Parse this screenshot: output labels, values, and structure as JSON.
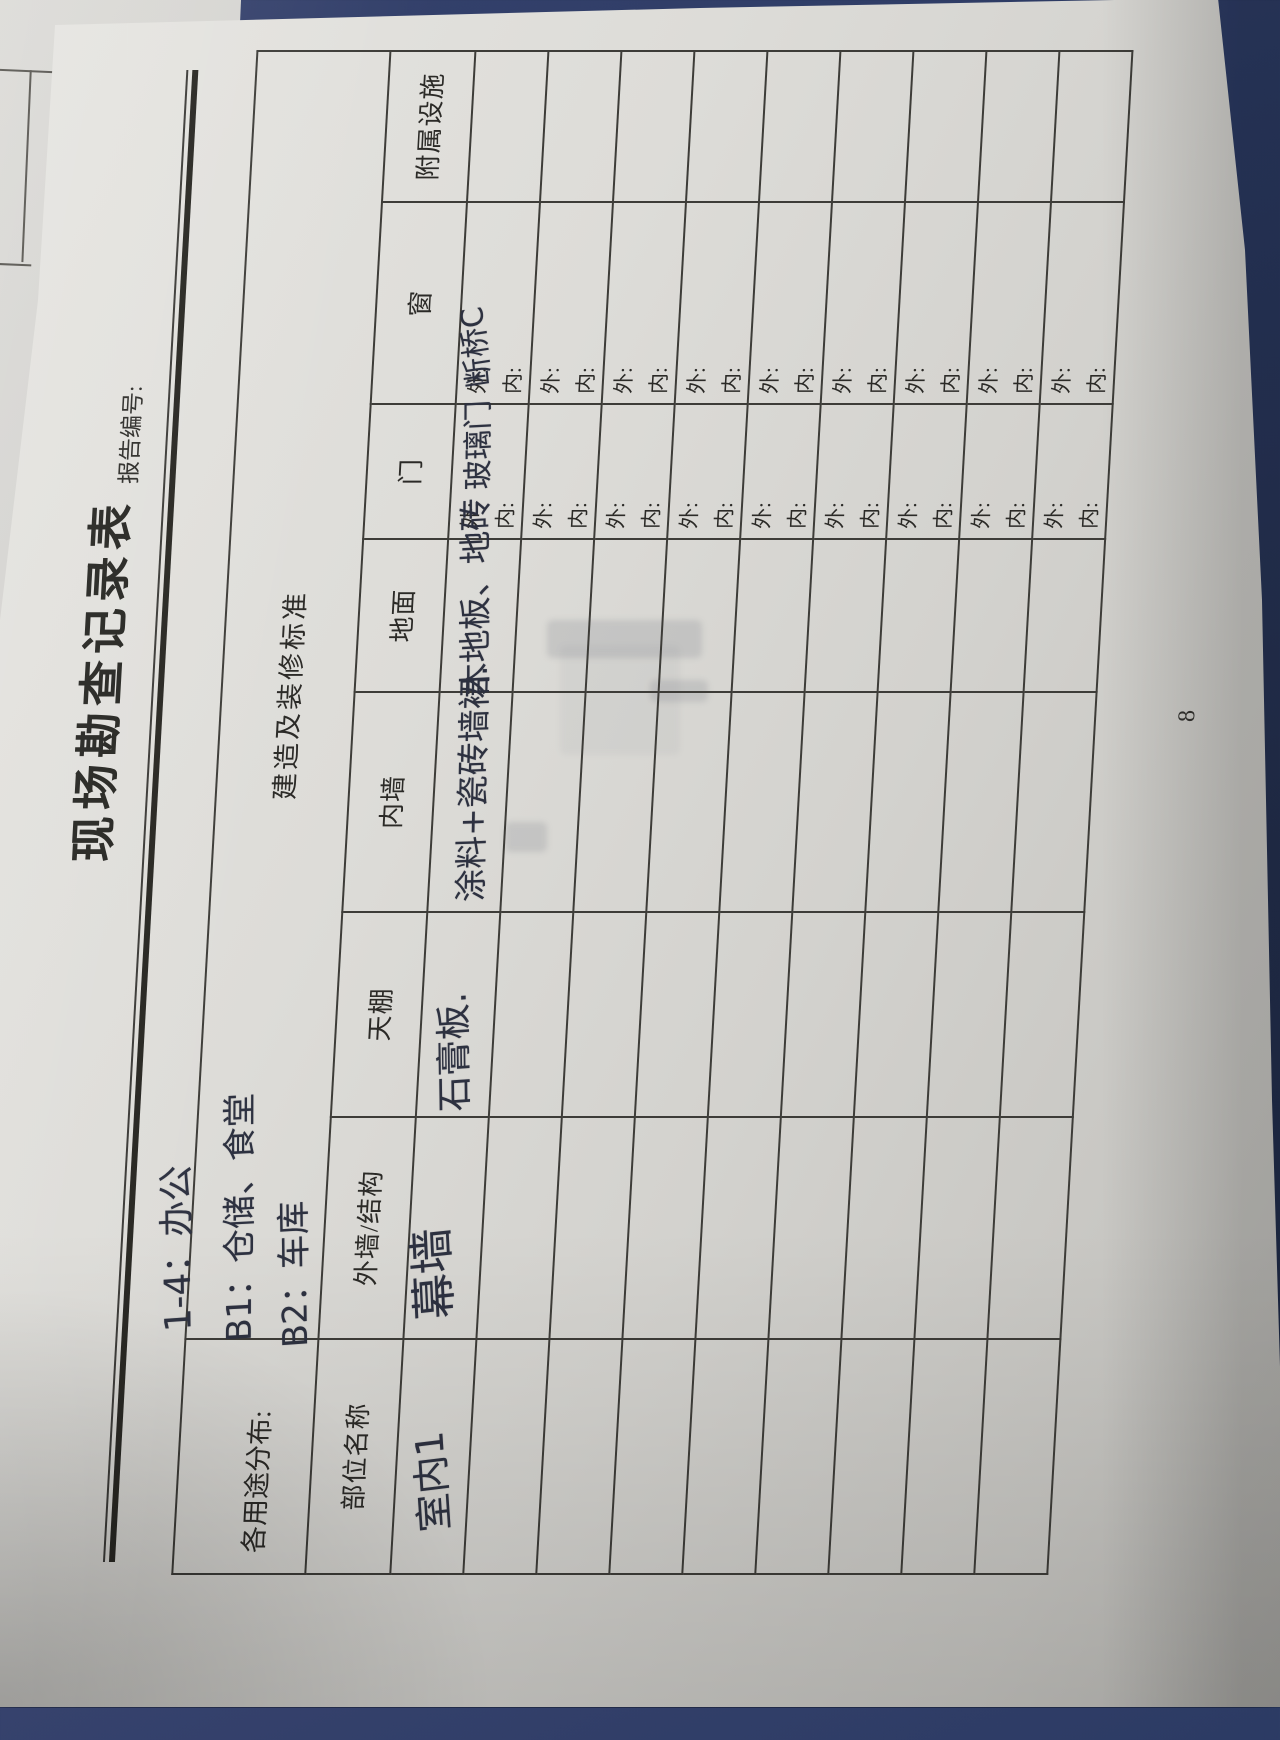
{
  "header": {
    "title": "现场勘查记录表",
    "report_no_label": "报告编号:"
  },
  "usage": {
    "label": "各用途分布:",
    "lines": [
      "1-4：办公",
      "B1：仓储、食堂",
      "B2：车库"
    ]
  },
  "table": {
    "merged_header": "建造及装修标准",
    "columns": [
      "部位名称",
      "外墙/结构",
      "天棚",
      "内墙",
      "地面",
      "门",
      "窗",
      "附属设施"
    ],
    "sub_labels": {
      "out": "外:",
      "in": "内:"
    },
    "rows": [
      {
        "name": "室内1",
        "wall": "幕墙",
        "ceiling": "石膏板.",
        "inner_wall": "涂料+瓷砖墙裙.",
        "floor": "木地板、地砖",
        "door_out": "玻璃门",
        "door_in": "",
        "window_out": "断桥C",
        "window_in": "",
        "facility": ""
      },
      {
        "name": "",
        "wall": "",
        "ceiling": "",
        "inner_wall": "",
        "floor": "",
        "door_out": "",
        "door_in": "",
        "window_out": "",
        "window_in": "",
        "facility": ""
      },
      {
        "name": "",
        "wall": "",
        "ceiling": "",
        "inner_wall": "",
        "floor": "",
        "door_out": "",
        "door_in": "",
        "window_out": "",
        "window_in": "",
        "facility": ""
      },
      {
        "name": "",
        "wall": "",
        "ceiling": "",
        "inner_wall": "",
        "floor": "",
        "door_out": "",
        "door_in": "",
        "window_out": "",
        "window_in": "",
        "facility": ""
      },
      {
        "name": "",
        "wall": "",
        "ceiling": "",
        "inner_wall": "",
        "floor": "",
        "door_out": "",
        "door_in": "",
        "window_out": "",
        "window_in": "",
        "facility": ""
      },
      {
        "name": "",
        "wall": "",
        "ceiling": "",
        "inner_wall": "",
        "floor": "",
        "door_out": "",
        "door_in": "",
        "window_out": "",
        "window_in": "",
        "facility": ""
      },
      {
        "name": "",
        "wall": "",
        "ceiling": "",
        "inner_wall": "",
        "floor": "",
        "door_out": "",
        "door_in": "",
        "window_out": "",
        "window_in": "",
        "facility": ""
      },
      {
        "name": "",
        "wall": "",
        "ceiling": "",
        "inner_wall": "",
        "floor": "",
        "door_out": "",
        "door_in": "",
        "window_out": "",
        "window_in": "",
        "facility": ""
      },
      {
        "name": "",
        "wall": "",
        "ceiling": "",
        "inner_wall": "",
        "floor": "",
        "door_out": "",
        "door_in": "",
        "window_out": "",
        "window_in": "",
        "facility": ""
      }
    ]
  },
  "page": {
    "number": "8"
  },
  "colors": {
    "background_blue": "#2b3a63",
    "paper": "#d8d7d3",
    "grid_line": "#3d3c38",
    "printed_text": "#2b2a27",
    "ink": "#2d3140"
  }
}
